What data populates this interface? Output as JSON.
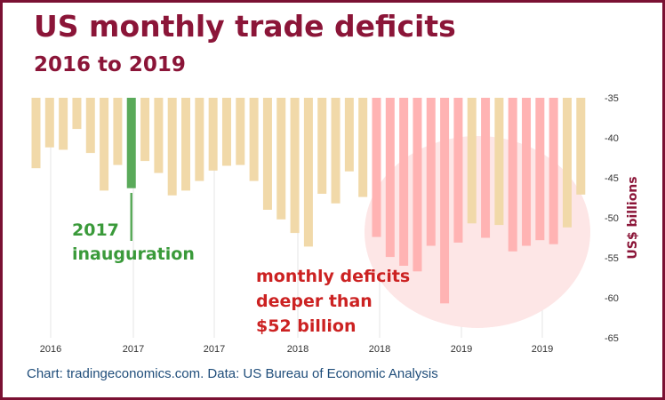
{
  "title": "US monthly trade deficits",
  "subtitle": "2016 to 2019",
  "footer": "Chart: tradingeconomics.com. Data: US Bureau of Economic Analysis",
  "colors": {
    "frame": "#7a1133",
    "title": "#8b1538",
    "bar_default": "#f1d9a9",
    "bar_highlight": "#ffb3b3",
    "bar_inauguration": "#5aaa5a",
    "ellipse": "#fde6e6",
    "annotation_green": "#3a9a3a",
    "annotation_red": "#cc2222",
    "axis_text": "#333333",
    "footer": "#1f4d7a"
  },
  "chart_data": {
    "type": "bar",
    "ylabel": "US$ billions",
    "ylim": [
      -65,
      -35
    ],
    "y_ticks": [
      -35,
      -40,
      -45,
      -50,
      -55,
      -60,
      -65
    ],
    "x_tick_labels": [
      "2016",
      "2017",
      "2017",
      "2018",
      "2018",
      "2019",
      "2019"
    ],
    "grid": "vertical lines at x ticks",
    "y_axis_position": "right",
    "values": [
      -43.8,
      -41.2,
      -41.5,
      -38.9,
      -41.9,
      -46.6,
      -43.4,
      -46.3,
      -42.9,
      -44.4,
      -47.2,
      -46.6,
      -45.4,
      -44.1,
      -43.5,
      -43.4,
      -45.4,
      -49.0,
      -50.2,
      -51.9,
      -53.6,
      -47.0,
      -48.2,
      -44.2,
      -47.4,
      -52.4,
      -54.9,
      -56.0,
      -56.7,
      -53.5,
      -60.7,
      -53.1,
      -50.7,
      -52.5,
      -50.9,
      -54.2,
      -53.5,
      -52.8,
      -53.3,
      -51.2,
      -47.1
    ],
    "inauguration_index": 7,
    "highlight_threshold": -52,
    "highlight_start_index": 25,
    "annotations": [
      {
        "lines": [
          "2017",
          "inauguration"
        ],
        "color_key": "annotation_green"
      },
      {
        "lines": [
          "monthly deficits",
          "deeper than",
          "$52 billion"
        ],
        "color_key": "annotation_red"
      }
    ]
  }
}
